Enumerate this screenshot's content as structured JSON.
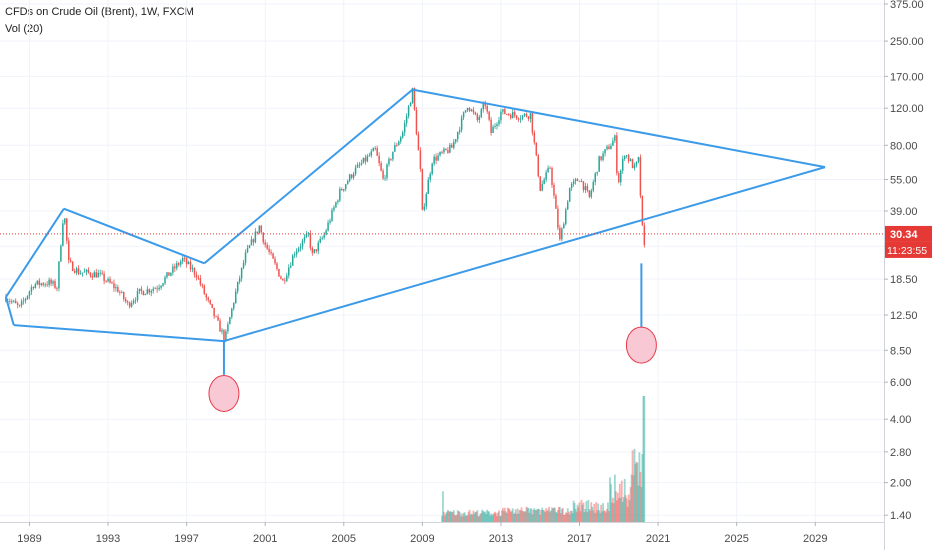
{
  "chart_data": {
    "type": "candlestick",
    "title": "CFDs on Crude Oil (Brent), 1W, FXCM",
    "indicator": "Vol (20)",
    "y_scale": "log",
    "ylim": [
      1.3,
      375
    ],
    "xlim": [
      1987.5,
      2032.5
    ],
    "y_ticks": [
      "375.00",
      "250.00",
      "170.00",
      "120.00",
      "80.00",
      "55.00",
      "39.00",
      "26.50",
      "18.50",
      "12.50",
      "8.50",
      "6.00",
      "4.00",
      "2.80",
      "2.00",
      "1.40"
    ],
    "x_ticks": [
      "1989",
      "1993",
      "1997",
      "2001",
      "2005",
      "2009",
      "2013",
      "2017",
      "2021",
      "2025",
      "2029"
    ],
    "current_price": "30.34",
    "countdown": "11:23:55",
    "price_path": [
      [
        1987.8,
        15.2
      ],
      [
        1988.5,
        13.5
      ],
      [
        1989.2,
        17.5
      ],
      [
        1990.0,
        17.8
      ],
      [
        1990.4,
        17.0
      ],
      [
        1990.75,
        40.0
      ],
      [
        1991.0,
        22.0
      ],
      [
        1991.5,
        20.0
      ],
      [
        1992.5,
        19.5
      ],
      [
        1993.5,
        16.5
      ],
      [
        1994.0,
        14.0
      ],
      [
        1994.6,
        16.0
      ],
      [
        1995.5,
        17.0
      ],
      [
        1996.8,
        23.0
      ],
      [
        1997.5,
        19.5
      ],
      [
        1998.0,
        15.0
      ],
      [
        1998.95,
        9.6
      ],
      [
        1999.5,
        16.0
      ],
      [
        2000.0,
        24.0
      ],
      [
        2000.7,
        33.0
      ],
      [
        2001.0,
        27.0
      ],
      [
        2001.9,
        18.0
      ],
      [
        2002.5,
        25.0
      ],
      [
        2003.2,
        30.0
      ],
      [
        2003.4,
        24.0
      ],
      [
        2004.0,
        30.0
      ],
      [
        2004.8,
        48.0
      ],
      [
        2005.5,
        60.0
      ],
      [
        2006.6,
        76.0
      ],
      [
        2007.0,
        55.0
      ],
      [
        2007.5,
        75.0
      ],
      [
        2008.0,
        92.0
      ],
      [
        2008.5,
        145.0
      ],
      [
        2008.9,
        60.0
      ],
      [
        2009.0,
        38.0
      ],
      [
        2009.5,
        68.0
      ],
      [
        2010.5,
        78.0
      ],
      [
        2011.3,
        125.0
      ],
      [
        2011.8,
        105.0
      ],
      [
        2012.2,
        126.0
      ],
      [
        2012.5,
        92.0
      ],
      [
        2013.0,
        115.0
      ],
      [
        2014.0,
        110.0
      ],
      [
        2014.5,
        112.0
      ],
      [
        2015.0,
        50.0
      ],
      [
        2015.5,
        63.0
      ],
      [
        2016.0,
        28.0
      ],
      [
        2016.5,
        50.0
      ],
      [
        2017.0,
        56.0
      ],
      [
        2017.5,
        45.0
      ],
      [
        2018.0,
        68.0
      ],
      [
        2018.8,
        86.0
      ],
      [
        2018.95,
        52.0
      ],
      [
        2019.3,
        74.0
      ],
      [
        2019.8,
        62.0
      ],
      [
        2020.0,
        68.0
      ],
      [
        2020.2,
        32.0
      ],
      [
        2020.3,
        26.0
      ]
    ],
    "volume_range": [
      2010.0,
      2020.3
    ],
    "annotations": {
      "lines": [
        [
          [
            1987.8,
            15.2
          ],
          [
            1990.75,
            40.0
          ]
        ],
        [
          [
            1990.75,
            40.0
          ],
          [
            1997.9,
            22.0
          ]
        ],
        [
          [
            1997.9,
            22.0
          ],
          [
            2008.5,
            147.0
          ]
        ],
        [
          [
            2008.5,
            147.0
          ],
          [
            2029.5,
            63.0
          ]
        ],
        [
          [
            1987.8,
            15.2
          ],
          [
            1988.2,
            11.2
          ]
        ],
        [
          [
            1988.2,
            11.2
          ],
          [
            1998.9,
            9.4
          ]
        ],
        [
          [
            1998.9,
            9.4
          ],
          [
            2029.5,
            63.0
          ]
        ],
        [
          [
            1998.9,
            9.4
          ],
          [
            1998.9,
            6.5
          ]
        ],
        [
          [
            2020.15,
            22.0
          ],
          [
            2020.15,
            10.5
          ]
        ]
      ],
      "circles": [
        {
          "x": 1998.9,
          "y": 5.3
        },
        {
          "x": 2020.15,
          "y": 9.0
        }
      ],
      "line_color": "#3c9be8",
      "circle_fill": "#f8c8d4",
      "circle_stroke": "#e83a4a"
    },
    "colors": {
      "up": "#26a69a",
      "down": "#ef5350",
      "price_line": "#e53935"
    }
  }
}
